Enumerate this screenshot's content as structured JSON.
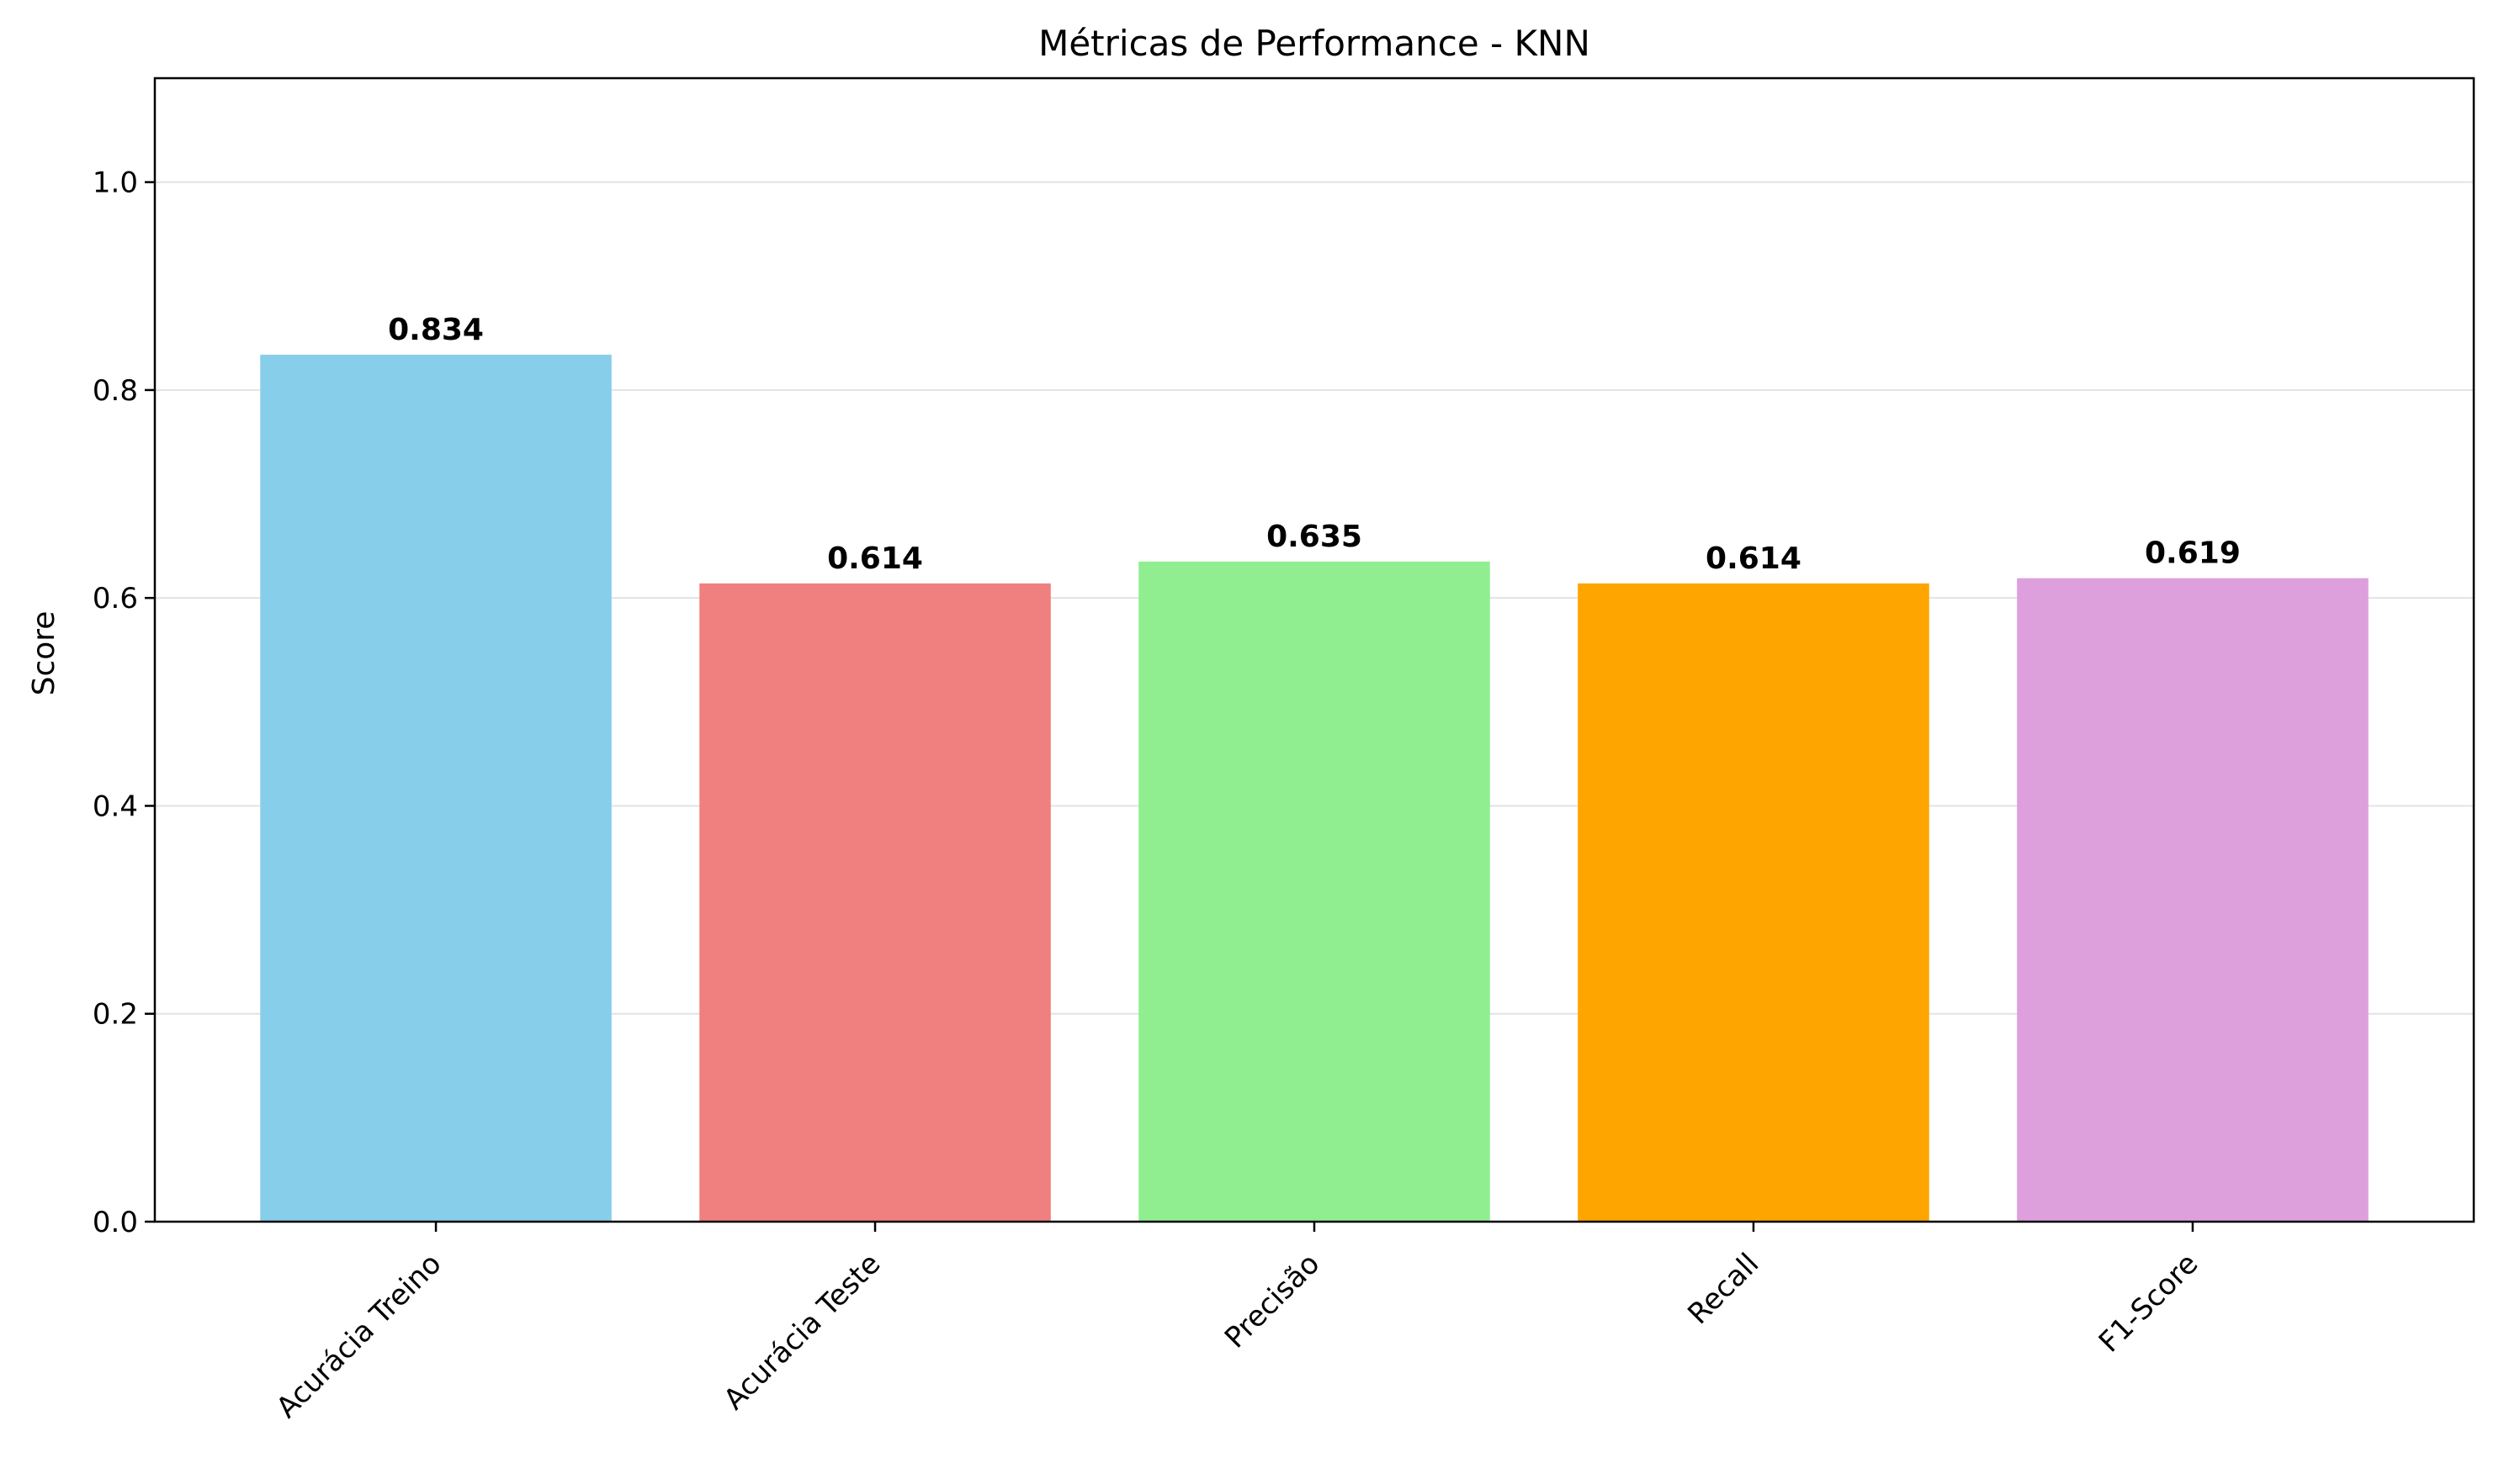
{
  "chart_data": {
    "type": "bar",
    "title": "Métricas de Performance - KNN",
    "xlabel": "",
    "ylabel": "Score",
    "categories": [
      "Acurácia Treino",
      "Acurácia Teste",
      "Precisão",
      "Recall",
      "F1-Score"
    ],
    "values": [
      0.834,
      0.614,
      0.635,
      0.614,
      0.619
    ],
    "value_labels": [
      "0.834",
      "0.614",
      "0.635",
      "0.614",
      "0.619"
    ],
    "colors": [
      "#87ceeb",
      "#f08080",
      "#90ee90",
      "#ffa500",
      "#dda0dd"
    ],
    "ylim": [
      0,
      1.1
    ],
    "yticks": [
      0.0,
      0.2,
      0.4,
      0.6,
      0.8,
      1.0
    ],
    "ytick_labels": [
      "0.0",
      "0.2",
      "0.4",
      "0.6",
      "0.8",
      "1.0"
    ],
    "grid": "horizontal",
    "xtick_rotation": 45
  }
}
